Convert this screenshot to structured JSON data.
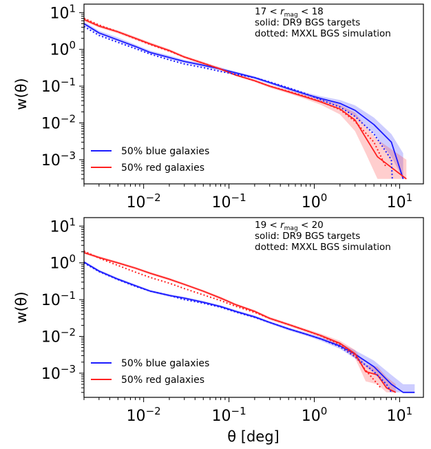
{
  "chart_data": [
    {
      "type": "line",
      "panel": "top",
      "xscale": "log",
      "yscale": "log",
      "xlim": [
        0.002,
        19
      ],
      "ylim": [
        0.00022,
        17
      ],
      "xlabel": "",
      "ylabel": "w(θ)",
      "xticks": [
        0.01,
        0.1,
        1,
        10
      ],
      "xtick_labels": [
        "10⁻²",
        "10⁻¹",
        "10⁰",
        "10¹"
      ],
      "yticks": [
        0.001,
        0.01,
        0.1,
        1,
        10
      ],
      "ytick_labels": [
        "10⁻³",
        "10⁻²",
        "10⁻¹",
        "10⁰",
        "10¹"
      ],
      "annotation": {
        "mag_prefix": "17",
        "mag_symbol": "r",
        "mag_subscript": "mag",
        "mag_suffix": "18",
        "line2": "solid: DR9 BGS targets",
        "line3": "dotted: MXXL BGS simulation"
      },
      "legend": {
        "placement": "lower-left",
        "entries": [
          "50% blue galaxies",
          "50% red galaxies"
        ]
      },
      "series": [
        {
          "name": "50% blue galaxies",
          "style": "solid",
          "color": "#1a1aff",
          "x": [
            0.002,
            0.003,
            0.005,
            0.008,
            0.012,
            0.02,
            0.03,
            0.05,
            0.08,
            0.12,
            0.2,
            0.3,
            0.5,
            0.8,
            1.2,
            2,
            3,
            5,
            8,
            11
          ],
          "y": [
            5.0,
            2.8,
            1.8,
            1.2,
            0.82,
            0.6,
            0.47,
            0.37,
            0.29,
            0.23,
            0.17,
            0.125,
            0.085,
            0.06,
            0.046,
            0.034,
            0.022,
            0.009,
            0.003,
            0.0003
          ],
          "band_low": [
            4.4,
            2.5,
            1.6,
            1.07,
            0.74,
            0.54,
            0.42,
            0.33,
            0.26,
            0.21,
            0.155,
            0.114,
            0.077,
            0.054,
            0.04,
            0.027,
            0.015,
            0.005,
            0.0012,
            0.0003
          ],
          "band_high": [
            5.7,
            3.2,
            2.1,
            1.35,
            0.92,
            0.68,
            0.52,
            0.41,
            0.32,
            0.25,
            0.185,
            0.136,
            0.094,
            0.067,
            0.053,
            0.042,
            0.03,
            0.014,
            0.005,
            0.0015
          ]
        },
        {
          "name": "50% red galaxies",
          "style": "solid",
          "color": "#ff2020",
          "x": [
            0.002,
            0.003,
            0.005,
            0.008,
            0.012,
            0.02,
            0.03,
            0.05,
            0.08,
            0.12,
            0.2,
            0.3,
            0.5,
            0.8,
            1.2,
            2,
            3,
            4,
            5.5,
            12
          ],
          "y": [
            6.5,
            4.3,
            3.0,
            2.0,
            1.4,
            0.93,
            0.62,
            0.42,
            0.29,
            0.2,
            0.14,
            0.1,
            0.07,
            0.05,
            0.037,
            0.024,
            0.012,
            0.004,
            0.0012,
            0.0003
          ],
          "band_low": [
            5.8,
            3.9,
            2.7,
            1.8,
            1.27,
            0.85,
            0.57,
            0.38,
            0.27,
            0.19,
            0.13,
            0.09,
            0.063,
            0.044,
            0.031,
            0.017,
            0.006,
            0.0015,
            0.0003,
            0.0003
          ],
          "band_high": [
            7.3,
            4.8,
            3.3,
            2.2,
            1.55,
            1.02,
            0.68,
            0.46,
            0.32,
            0.22,
            0.153,
            0.11,
            0.078,
            0.057,
            0.044,
            0.031,
            0.019,
            0.008,
            0.0035,
            0.001
          ]
        },
        {
          "name": "",
          "style": "dotted",
          "color": "#1a1aff",
          "x": [
            0.002,
            0.003,
            0.005,
            0.008,
            0.012,
            0.02,
            0.03,
            0.05,
            0.08,
            0.12,
            0.2,
            0.3,
            0.5,
            0.8,
            1.2,
            2,
            3,
            5,
            8,
            8.2
          ],
          "y": [
            4.2,
            2.4,
            1.55,
            1.05,
            0.74,
            0.52,
            0.4,
            0.32,
            0.25,
            0.21,
            0.17,
            0.13,
            0.09,
            0.062,
            0.042,
            0.027,
            0.015,
            0.005,
            0.001,
            0.0003
          ]
        },
        {
          "name": "",
          "style": "dotted",
          "color": "#ff2020",
          "x": [
            0.002,
            0.003,
            0.005,
            0.008,
            0.012,
            0.02,
            0.03,
            0.05,
            0.08,
            0.12,
            0.2,
            0.3,
            0.5,
            0.8,
            1.2,
            2,
            3,
            5,
            7
          ],
          "y": [
            7.0,
            4.6,
            3.0,
            1.95,
            1.35,
            0.9,
            0.62,
            0.42,
            0.29,
            0.2,
            0.14,
            0.1,
            0.072,
            0.052,
            0.038,
            0.023,
            0.011,
            0.003,
            0.0006
          ]
        }
      ]
    },
    {
      "type": "line",
      "panel": "bottom",
      "xscale": "log",
      "yscale": "log",
      "xlim": [
        0.002,
        19
      ],
      "ylim": [
        0.00022,
        17
      ],
      "xlabel": "θ [deg]",
      "ylabel": "w(θ)",
      "xticks": [
        0.01,
        0.1,
        1,
        10
      ],
      "xtick_labels": [
        "10⁻²",
        "10⁻¹",
        "10⁰",
        "10¹"
      ],
      "yticks": [
        0.001,
        0.01,
        0.1,
        1,
        10
      ],
      "ytick_labels": [
        "10⁻³",
        "10⁻²",
        "10⁻¹",
        "10⁰",
        "10¹"
      ],
      "annotation": {
        "mag_prefix": "19",
        "mag_symbol": "r",
        "mag_subscript": "mag",
        "mag_suffix": "20",
        "line2": "solid: DR9 BGS targets",
        "line3": "dotted: MXXL BGS simulation"
      },
      "legend": {
        "placement": "lower-left",
        "entries": [
          "50% blue galaxies",
          "50% red galaxies"
        ]
      },
      "series": [
        {
          "name": "50% blue galaxies",
          "style": "solid",
          "color": "#1a1aff",
          "x": [
            0.002,
            0.003,
            0.005,
            0.008,
            0.012,
            0.02,
            0.03,
            0.05,
            0.08,
            0.12,
            0.2,
            0.3,
            0.5,
            0.8,
            1.2,
            2,
            3,
            5,
            8,
            11,
            15
          ],
          "y": [
            1.05,
            0.6,
            0.36,
            0.24,
            0.17,
            0.13,
            0.11,
            0.085,
            0.065,
            0.048,
            0.034,
            0.024,
            0.016,
            0.0115,
            0.0085,
            0.0055,
            0.0033,
            0.0015,
            0.0005,
            0.0003,
            0.0003
          ],
          "band_low": [
            0.97,
            0.55,
            0.33,
            0.22,
            0.158,
            0.12,
            0.1,
            0.078,
            0.06,
            0.044,
            0.031,
            0.022,
            0.0145,
            0.0104,
            0.0075,
            0.0046,
            0.0025,
            0.001,
            0.0003,
            0.0003,
            0.0003
          ],
          "band_high": [
            1.14,
            0.65,
            0.39,
            0.26,
            0.183,
            0.14,
            0.118,
            0.092,
            0.07,
            0.052,
            0.037,
            0.026,
            0.0175,
            0.0127,
            0.0096,
            0.0066,
            0.0042,
            0.0022,
            0.0009,
            0.0005,
            0.0005
          ]
        },
        {
          "name": "50% red galaxies",
          "style": "solid",
          "color": "#ff2020",
          "x": [
            0.002,
            0.003,
            0.005,
            0.008,
            0.012,
            0.02,
            0.03,
            0.05,
            0.08,
            0.12,
            0.2,
            0.3,
            0.5,
            0.8,
            1.2,
            2,
            3,
            4,
            5.5,
            7,
            9
          ],
          "y": [
            1.9,
            1.4,
            1.0,
            0.72,
            0.52,
            0.36,
            0.26,
            0.17,
            0.11,
            0.073,
            0.048,
            0.031,
            0.021,
            0.0145,
            0.0105,
            0.0065,
            0.0034,
            0.0011,
            0.0009,
            0.0004,
            0.0003
          ],
          "band_low": [
            1.75,
            1.29,
            0.92,
            0.66,
            0.48,
            0.33,
            0.24,
            0.157,
            0.1,
            0.067,
            0.044,
            0.028,
            0.019,
            0.013,
            0.0093,
            0.0055,
            0.0026,
            0.0006,
            0.0005,
            0.0003,
            0.0003
          ],
          "band_high": [
            2.06,
            1.52,
            1.08,
            0.78,
            0.56,
            0.39,
            0.28,
            0.183,
            0.12,
            0.079,
            0.052,
            0.034,
            0.023,
            0.016,
            0.0118,
            0.0076,
            0.0043,
            0.0017,
            0.0015,
            0.0008,
            0.0005
          ]
        },
        {
          "name": "",
          "style": "dotted",
          "color": "#1a1aff",
          "x": [
            0.002,
            0.003,
            0.005,
            0.008,
            0.012,
            0.02,
            0.03,
            0.05,
            0.08,
            0.12,
            0.2,
            0.3,
            0.5,
            0.8,
            1.2,
            2,
            3,
            5,
            7,
            8
          ],
          "y": [
            1.0,
            0.58,
            0.35,
            0.23,
            0.17,
            0.13,
            0.1,
            0.08,
            0.062,
            0.046,
            0.033,
            0.024,
            0.016,
            0.0115,
            0.0085,
            0.0052,
            0.0028,
            0.0011,
            0.0005,
            0.0003
          ]
        },
        {
          "name": "",
          "style": "dotted",
          "color": "#ff2020",
          "x": [
            0.002,
            0.003,
            0.005,
            0.008,
            0.012,
            0.02,
            0.03,
            0.05,
            0.08,
            0.12,
            0.2,
            0.3,
            0.5,
            0.8,
            1.2,
            2,
            3,
            4,
            6
          ],
          "y": [
            2.1,
            1.35,
            0.85,
            0.56,
            0.4,
            0.28,
            0.2,
            0.135,
            0.094,
            0.066,
            0.045,
            0.031,
            0.021,
            0.0145,
            0.0103,
            0.006,
            0.003,
            0.0012,
            0.0004
          ]
        }
      ]
    }
  ]
}
